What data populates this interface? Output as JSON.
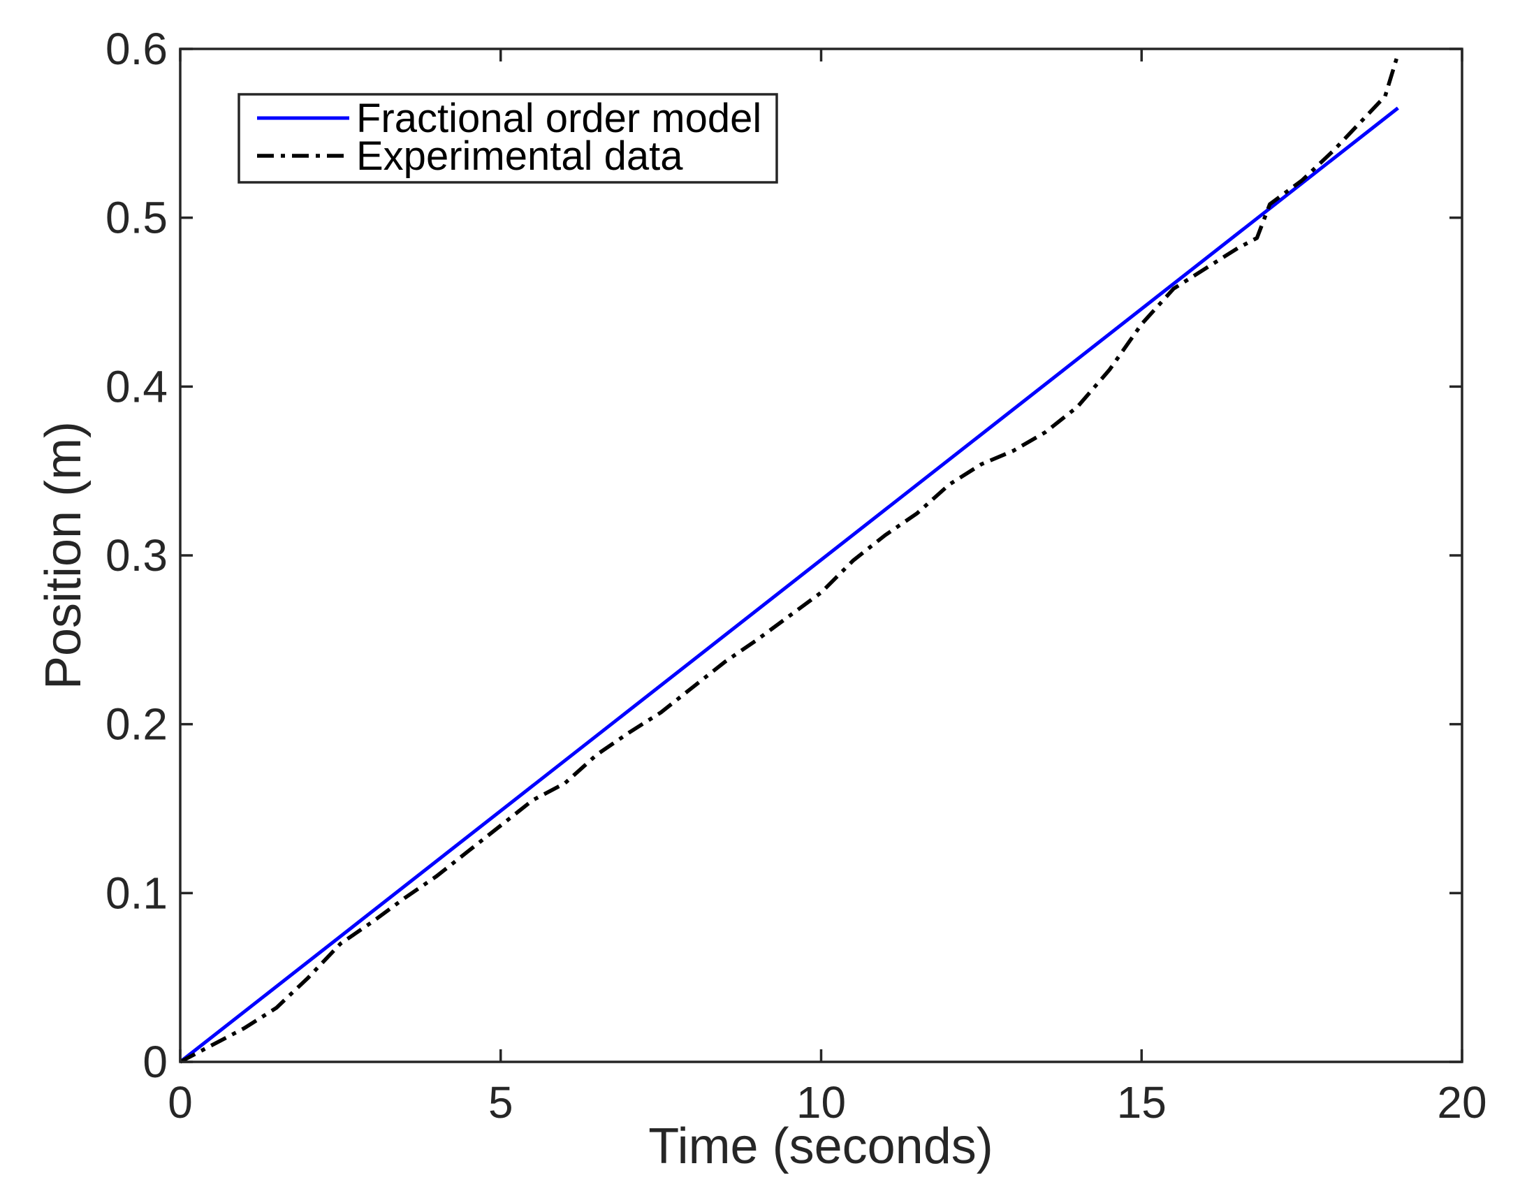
{
  "chart_data": {
    "type": "line",
    "xlabel": "Time (seconds)",
    "ylabel": "Position (m)",
    "xlim": [
      0,
      20
    ],
    "ylim": [
      0,
      0.6
    ],
    "xticks": [
      0,
      5,
      10,
      15,
      20
    ],
    "yticks": [
      0,
      0.1,
      0.2,
      0.3,
      0.4,
      0.5,
      0.6
    ],
    "xtick_labels": [
      "0",
      "5",
      "10",
      "15",
      "20"
    ],
    "ytick_labels": [
      "0",
      "0.1",
      "0.2",
      "0.3",
      "0.4",
      "0.5",
      "0.6"
    ],
    "grid": false,
    "legend_position": "top-left",
    "series": [
      {
        "name": "Fractional order model",
        "color": "#0000ff",
        "style": "solid",
        "x": [
          0,
          19
        ],
        "y": [
          0,
          0.565
        ]
      },
      {
        "name": "Experimental data",
        "color": "#000000",
        "style": "dash-dot",
        "x": [
          0,
          0.5,
          1.0,
          1.5,
          2.0,
          2.5,
          3.0,
          3.5,
          4.0,
          4.5,
          5.0,
          5.5,
          6.0,
          6.5,
          7.0,
          7.5,
          8.0,
          8.5,
          9.0,
          9.5,
          10.0,
          10.5,
          11.0,
          11.5,
          12.0,
          12.5,
          13.0,
          13.5,
          14.0,
          14.5,
          15.0,
          15.5,
          16.0,
          16.5,
          16.8,
          17.0,
          17.5,
          18.0,
          18.5,
          18.8,
          19.0
        ],
        "y": [
          0,
          0.01,
          0.02,
          0.032,
          0.05,
          0.07,
          0.083,
          0.097,
          0.11,
          0.125,
          0.14,
          0.155,
          0.165,
          0.182,
          0.195,
          0.207,
          0.222,
          0.237,
          0.25,
          0.264,
          0.278,
          0.297,
          0.312,
          0.325,
          0.342,
          0.354,
          0.362,
          0.373,
          0.388,
          0.41,
          0.437,
          0.458,
          0.47,
          0.482,
          0.488,
          0.508,
          0.522,
          0.54,
          0.56,
          0.572,
          0.597
        ]
      }
    ]
  }
}
